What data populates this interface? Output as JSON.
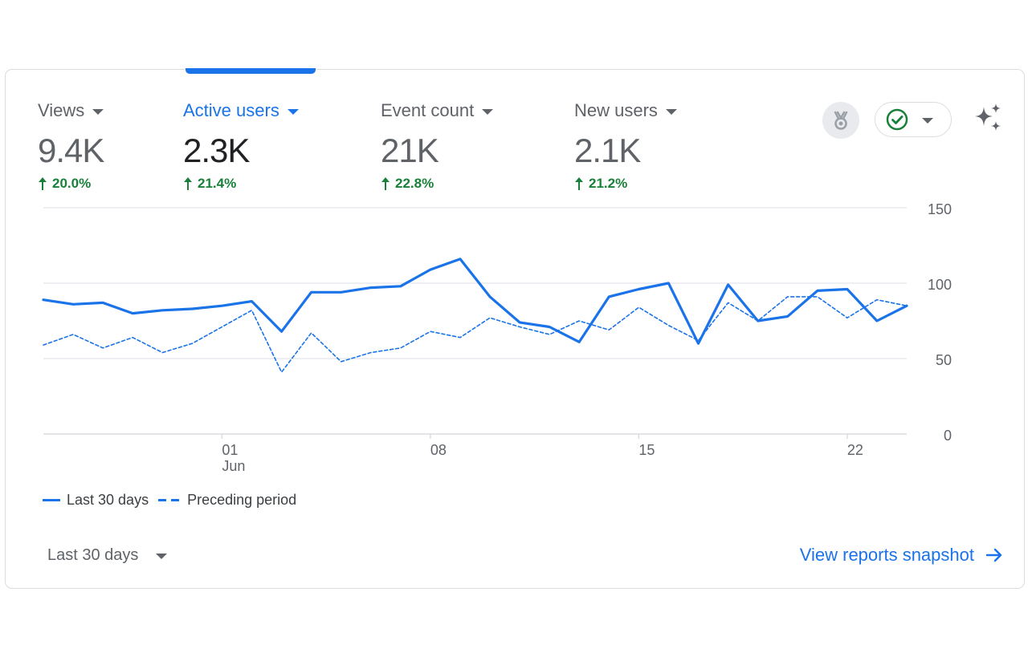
{
  "metrics": [
    {
      "label": "Views",
      "value": "9.4K",
      "delta": "20.0%",
      "active": false
    },
    {
      "label": "Active users",
      "value": "2.3K",
      "delta": "21.4%",
      "active": true
    },
    {
      "label": "Event count",
      "value": "21K",
      "delta": "22.8%",
      "active": false
    },
    {
      "label": "New users",
      "value": "2.1K",
      "delta": "21.2%",
      "active": false
    }
  ],
  "toolbar": {
    "insights_icon": "medal-icon",
    "status_icon": "check-circle-icon",
    "sparkle_icon": "sparkle-icon"
  },
  "legend": {
    "current": "Last 30 days",
    "previous": "Preceding period"
  },
  "date_range": {
    "label": "Last 30 days"
  },
  "view_link": {
    "label": "View reports snapshot"
  },
  "colors": {
    "accent": "#1a73e8",
    "positive": "#188038",
    "muted": "#5f6368"
  },
  "chart_data": {
    "type": "line",
    "x": [
      1,
      2,
      3,
      4,
      5,
      6,
      7,
      8,
      9,
      10,
      11,
      12,
      13,
      14,
      15,
      16,
      17,
      18,
      19,
      20,
      21,
      22,
      23,
      24,
      25,
      26,
      27,
      28,
      29,
      30
    ],
    "x_tick_labels": [
      {
        "index": 6,
        "label": "01",
        "sublabel": "Jun"
      },
      {
        "index": 13,
        "label": "08",
        "sublabel": ""
      },
      {
        "index": 20,
        "label": "15",
        "sublabel": ""
      },
      {
        "index": 27,
        "label": "22",
        "sublabel": ""
      }
    ],
    "y_ticks": [
      "150",
      "100",
      "50",
      "0"
    ],
    "ylim": [
      0,
      150
    ],
    "grid": true,
    "legend_position": "bottom-left",
    "series": [
      {
        "name": "Last 30 days",
        "style": "solid",
        "values": [
          89,
          86,
          87,
          80,
          82,
          83,
          85,
          88,
          68,
          94,
          94,
          97,
          98,
          109,
          116,
          91,
          74,
          71,
          61,
          91,
          96,
          100,
          60,
          99,
          75,
          78,
          95,
          96,
          75,
          85
        ]
      },
      {
        "name": "Preceding period",
        "style": "dashed",
        "values": [
          59,
          66,
          57,
          64,
          54,
          60,
          71,
          82,
          41,
          67,
          48,
          54,
          57,
          68,
          64,
          77,
          71,
          66,
          75,
          69,
          84,
          72,
          62,
          87,
          75,
          91,
          91,
          77,
          89,
          85
        ]
      }
    ]
  }
}
